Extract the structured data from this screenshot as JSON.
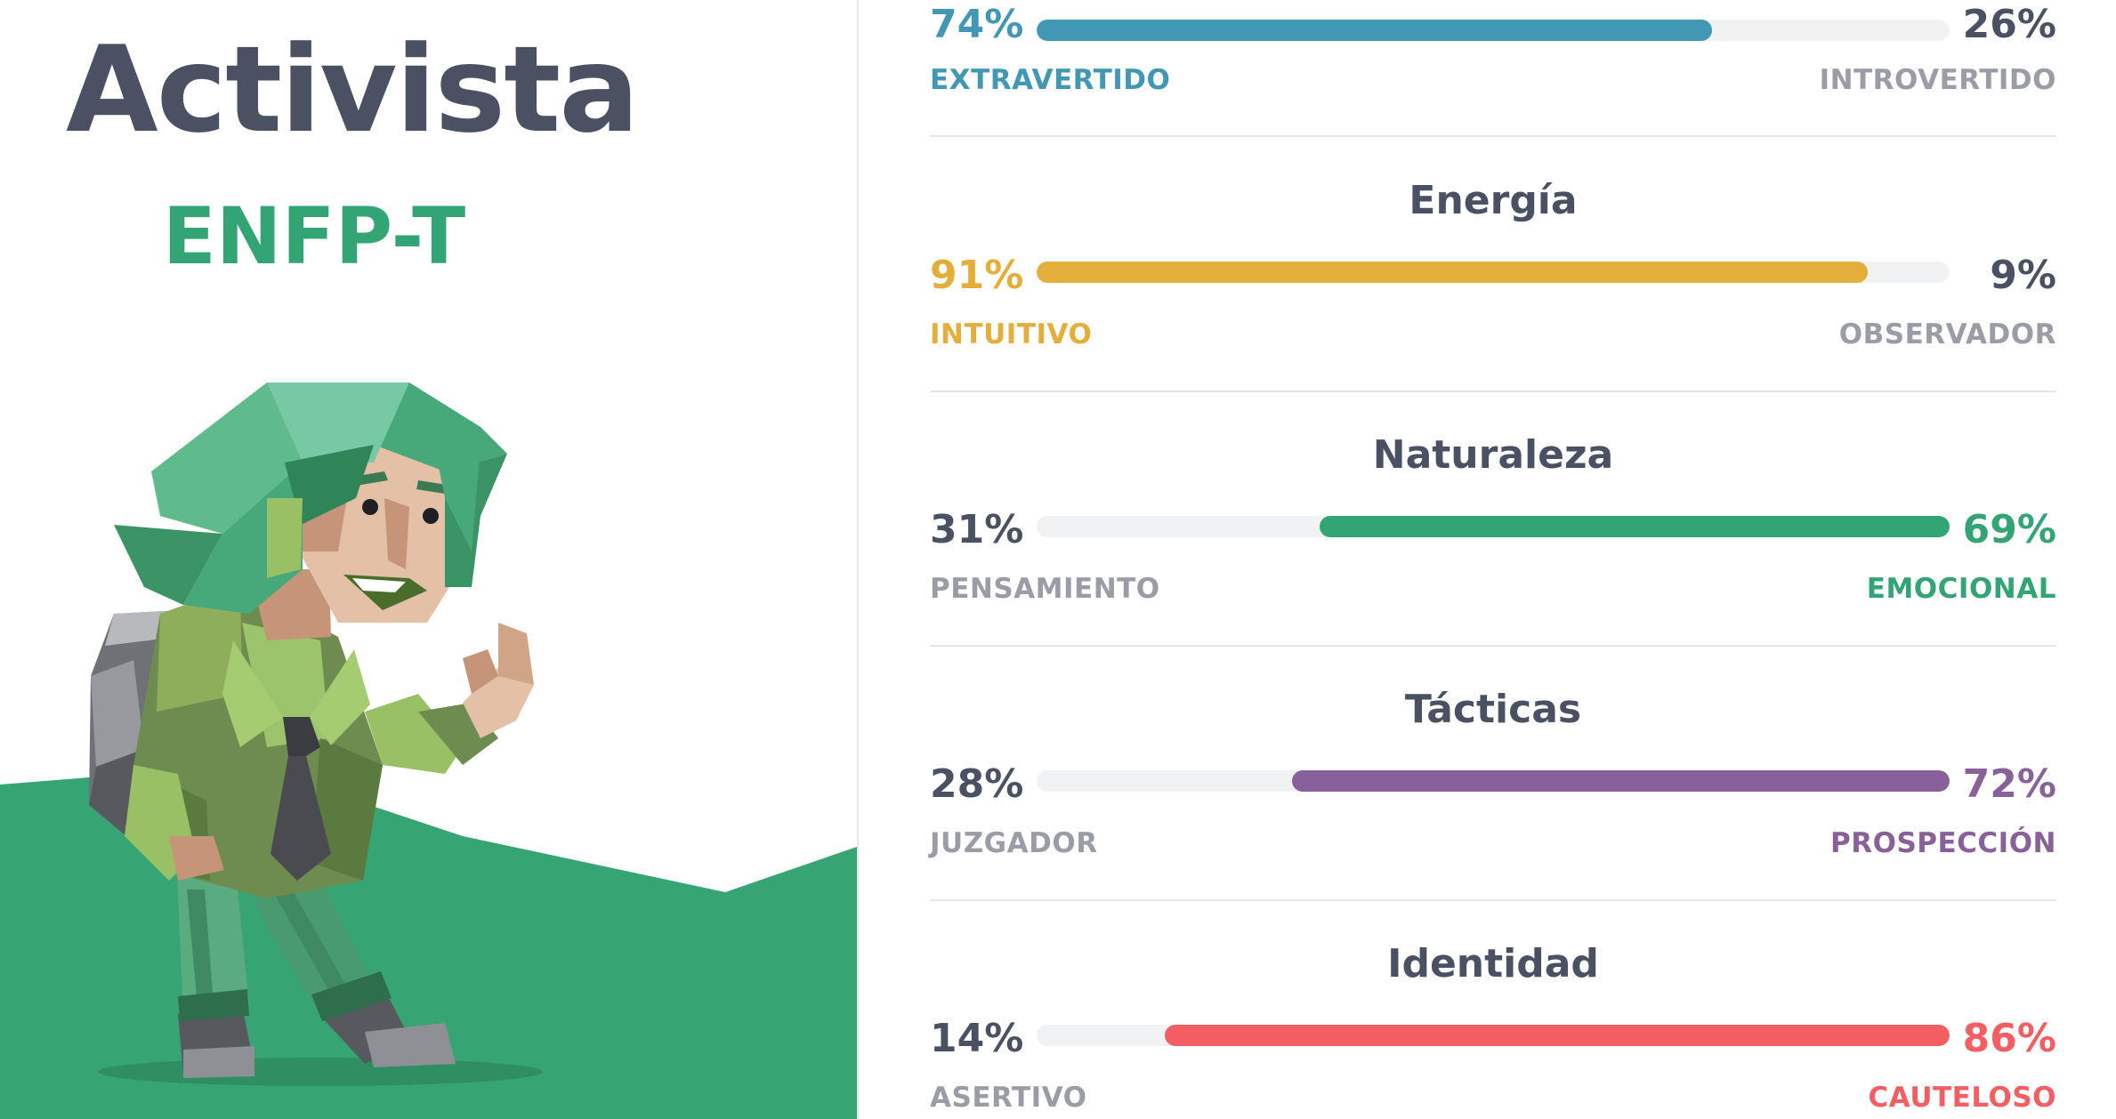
{
  "profile": {
    "name": "Activista",
    "code": "ENFP-T"
  },
  "colors": {
    "mind": "#4298b4",
    "energy": "#e4ae3a",
    "nature": "#33a474",
    "tactics": "#88619a",
    "identity": "#f25e62",
    "text": "#4a5163",
    "muted": "#9a9da6"
  },
  "traits": [
    {
      "title": "",
      "left_pct": "74%",
      "right_pct": "26%",
      "left_label": "EXTRAVERTIDO",
      "right_label": "INTROVERTIDO",
      "dominant": "left",
      "value": 74,
      "color": "#4298b4"
    },
    {
      "title": "Energía",
      "left_pct": "91%",
      "right_pct": "9%",
      "left_label": "INTUITIVO",
      "right_label": "OBSERVADOR",
      "dominant": "left",
      "value": 91,
      "color": "#e4ae3a"
    },
    {
      "title": "Naturaleza",
      "left_pct": "31%",
      "right_pct": "69%",
      "left_label": "PENSAMIENTO",
      "right_label": "EMOCIONAL",
      "dominant": "right",
      "value": 69,
      "color": "#33a474"
    },
    {
      "title": "Tácticas",
      "left_pct": "28%",
      "right_pct": "72%",
      "left_label": "JUZGADOR",
      "right_label": "PROSPECCIÓN",
      "dominant": "right",
      "value": 72,
      "color": "#88619a"
    },
    {
      "title": "Identidad",
      "left_pct": "14%",
      "right_pct": "86%",
      "left_label": "ASERTIVO",
      "right_label": "CAUTELOSO",
      "dominant": "right",
      "value": 86,
      "color": "#f25e62"
    }
  ],
  "icons": {
    "illustration": "activist-character-illustration",
    "hill": "green-hill-background"
  }
}
